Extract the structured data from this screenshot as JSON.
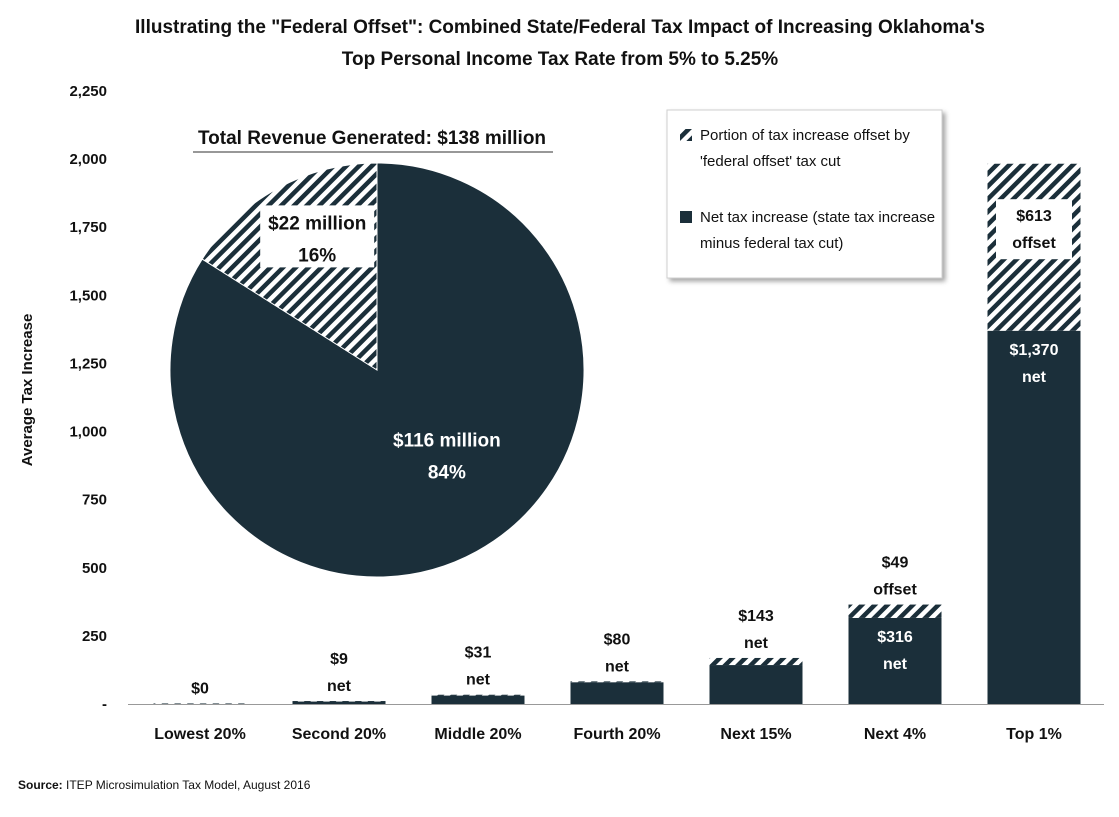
{
  "chart_data": [
    {
      "type": "bar",
      "stacked": true,
      "title_lines": [
        "Illustrating the \"Federal Offset\": Combined State/Federal Tax Impact of Increasing Oklahoma's",
        "Top Personal Income Tax Rate from 5% to 5.25%"
      ],
      "ylabel": "Average Tax Increase",
      "xlabel": "",
      "ylim": [
        0,
        2250
      ],
      "yticks": [
        0,
        250,
        500,
        750,
        1000,
        1250,
        1500,
        1750,
        2000,
        2250
      ],
      "ytick_labels": [
        "-",
        "250",
        "500",
        "750",
        "1,000",
        "1,250",
        "1,500",
        "1,750",
        "2,000",
        "2,250"
      ],
      "grid": false,
      "legend_position": "top-right",
      "categories": [
        "Lowest 20%",
        "Second 20%",
        "Middle 20%",
        "Fourth 20%",
        "Next 15%",
        "Next 4%",
        "Top 1%"
      ],
      "series": [
        {
          "name": "Net tax increase (state tax increase minus federal tax cut)",
          "pattern": "solid",
          "color": "#1b2f3a",
          "values": [
            0,
            9,
            31,
            80,
            143,
            316,
            1370
          ]
        },
        {
          "name": "Portion of tax increase offset by 'federal offset' tax cut",
          "pattern": "hatched",
          "color": "#1b2f3a",
          "values": [
            2,
            2,
            3,
            3,
            26,
            49,
            613
          ]
        }
      ],
      "data_labels": [
        {
          "category": "Lowest 20%",
          "lines": [
            "$0"
          ],
          "placement": "above"
        },
        {
          "category": "Second 20%",
          "lines": [
            "$9",
            "net"
          ],
          "placement": "above"
        },
        {
          "category": "Middle 20%",
          "lines": [
            "$31",
            "net"
          ],
          "placement": "above"
        },
        {
          "category": "Fourth 20%",
          "lines": [
            "$80",
            "net"
          ],
          "placement": "above"
        },
        {
          "category": "Next 15%",
          "lines": [
            "$143",
            "net"
          ],
          "placement": "above"
        },
        {
          "category": "Next 4%",
          "lines": [
            "$49",
            "offset"
          ],
          "placement": "above"
        },
        {
          "category": "Next 4%",
          "lines": [
            "$316",
            "net"
          ],
          "placement": "inside-net"
        },
        {
          "category": "Top 1%",
          "lines": [
            "$613",
            "offset"
          ],
          "placement": "inside-offset"
        },
        {
          "category": "Top 1%",
          "lines": [
            "$1,370",
            "net"
          ],
          "placement": "inside-net"
        }
      ]
    },
    {
      "type": "pie",
      "title": "Total Revenue Generated: $138 million",
      "slices": [
        {
          "label_lines": [
            "$116 million",
            "84%"
          ],
          "value": 84,
          "pattern": "solid",
          "color": "#1b2f3a"
        },
        {
          "label_lines": [
            "$22 million",
            "16%"
          ],
          "value": 16,
          "pattern": "hatched",
          "color": "#1b2f3a"
        }
      ]
    }
  ],
  "legend": {
    "items": [
      {
        "pattern": "hatched",
        "lines": [
          "Portion of tax increase offset by",
          "'federal offset' tax cut"
        ]
      },
      {
        "pattern": "solid",
        "lines": [
          "Net tax increase (state tax increase",
          "minus federal tax cut)"
        ]
      }
    ]
  },
  "source": {
    "label": "Source:",
    "text": " ITEP Microsimulation Tax Model, August 2016"
  },
  "colors": {
    "dark": "#1b2f3a",
    "background": "#ffffff"
  }
}
